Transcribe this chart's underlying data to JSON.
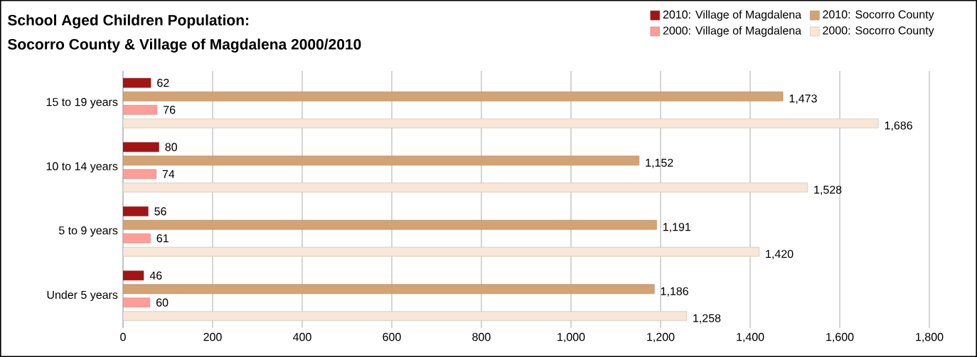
{
  "chart_data": {
    "type": "bar",
    "orientation": "horizontal",
    "title": "School Aged Children Population:",
    "subtitle": "Socorro County & Village of Magdalena 2000/2010",
    "categories": [
      "15 to 19 years",
      "10 to 14 years",
      "5 to 9 years",
      "Under 5 years"
    ],
    "series": [
      {
        "name": "2010: Village of Magdalena",
        "color": "#a31515",
        "values": [
          62,
          80,
          56,
          46
        ],
        "value_labels": [
          "62",
          "80",
          "56",
          "46"
        ]
      },
      {
        "name": "2010: Socorro County",
        "color": "#d4a373",
        "values": [
          1473,
          1152,
          1191,
          1186
        ],
        "value_labels": [
          "1,473",
          "1,152",
          "1,191",
          "1,186"
        ]
      },
      {
        "name": "2000: Village of Magdalena",
        "color": "#ff9e99",
        "values": [
          76,
          74,
          61,
          60
        ],
        "value_labels": [
          "76",
          "74",
          "61",
          "60"
        ]
      },
      {
        "name": "2000: Socorro County",
        "color": "#f8e6d8",
        "values": [
          1686,
          1528,
          1420,
          1258
        ],
        "value_labels": [
          "1,686",
          "1,528",
          "1,420",
          "1,258"
        ]
      }
    ],
    "xlim": [
      0,
      1800
    ],
    "xticks": [
      0,
      200,
      400,
      600,
      800,
      {
        "value": 1000,
        "label": "1,000"
      },
      {
        "value": 1200,
        "label": "1,200"
      },
      {
        "value": 1400,
        "label": "1,400"
      },
      {
        "value": 1600,
        "label": "1,600"
      },
      {
        "value": 1800,
        "label": "1,800"
      }
    ],
    "grid": "x",
    "legend": "top right"
  }
}
